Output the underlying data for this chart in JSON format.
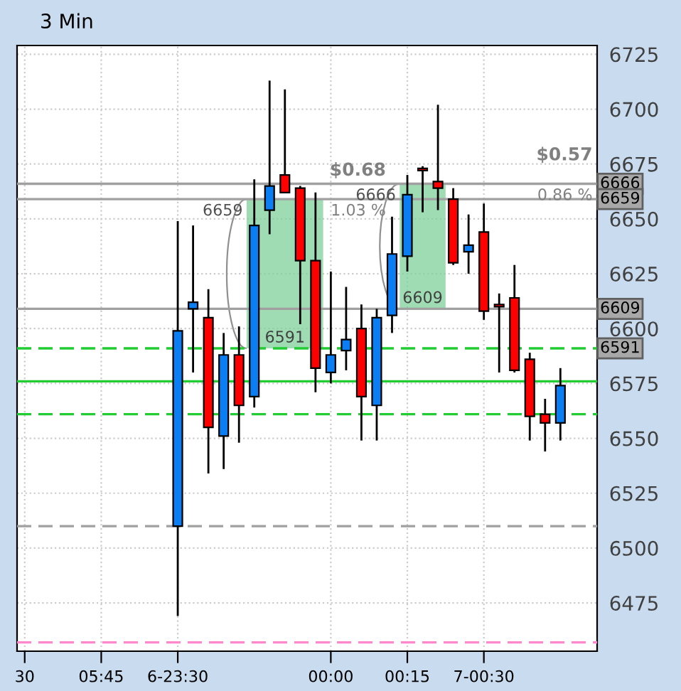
{
  "chart_data": {
    "type": "candlestick",
    "title": "3 Min",
    "categories": [
      "30",
      null,
      null,
      null,
      null,
      "05:45",
      null,
      null,
      null,
      null,
      "6-23:30",
      null,
      null,
      null,
      null,
      null,
      null,
      null,
      null,
      null,
      "00:00",
      null,
      null,
      null,
      null,
      "00:15",
      null,
      null,
      null,
      null,
      "7-00:30",
      null,
      null,
      null,
      null,
      null
    ],
    "ohlc": [
      null,
      null,
      null,
      null,
      null,
      null,
      null,
      null,
      null,
      null,
      [
        6510,
        6649,
        6469,
        6599
      ],
      [
        6609,
        6647,
        6580,
        6612
      ],
      [
        6605,
        6618,
        6534,
        6555
      ],
      [
        6551,
        6598,
        6536,
        6588
      ],
      [
        6588,
        6601,
        6548,
        6565
      ],
      [
        6569,
        6668,
        6564,
        6647
      ],
      [
        6654,
        6713,
        6643,
        6665
      ],
      [
        6670,
        6709,
        6662,
        6662
      ],
      [
        6664,
        6665,
        6602,
        6631
      ],
      [
        6631,
        6662,
        6571,
        6582
      ],
      [
        6580,
        6626,
        6575,
        6588
      ],
      [
        6590,
        6619,
        6581,
        6595
      ],
      [
        6600,
        6611,
        6549,
        6569
      ],
      [
        6565,
        6609,
        6549,
        6605
      ],
      [
        6606,
        6651,
        6598,
        6634
      ],
      [
        6633,
        6670,
        6626,
        6661
      ],
      [
        6673,
        6674,
        6653,
        6672
      ],
      [
        6667,
        6702,
        6654,
        6664
      ],
      [
        6659,
        6664,
        6629,
        6630
      ],
      [
        6635,
        6652,
        6625,
        6638
      ],
      [
        6644,
        6657,
        6604,
        6608
      ],
      [
        6611,
        6616,
        6580,
        6610
      ],
      [
        6614,
        6629,
        6580,
        6581
      ],
      [
        6586,
        6589,
        6549,
        6560
      ],
      [
        6561,
        6568,
        6544,
        6557
      ],
      [
        6557,
        6582,
        6549,
        6574
      ]
    ],
    "colors": [
      null,
      null,
      null,
      null,
      null,
      null,
      null,
      null,
      null,
      null,
      "#0a7ef2",
      "#0a7ef2",
      "#ff0000",
      "#0a7ef2",
      "#ff0000",
      "#0a7ef2",
      "#0a7ef2",
      "#ff0000",
      "#ff0000",
      "#ff0000",
      "#0a7ef2",
      "#0a7ef2",
      "#ff0000",
      "#0a7ef2",
      "#0a7ef2",
      "#0a7ef2",
      "#ff0000",
      "#ff0000",
      "#ff0000",
      "#0a7ef2",
      "#ff0000",
      "#ff0000",
      "#ff0000",
      "#ff0000",
      "#ff0000",
      "#0a7ef2"
    ],
    "ylim": [
      6453,
      6729
    ],
    "yticks": [
      6475,
      6500,
      6525,
      6550,
      6575,
      6600,
      6625,
      6650,
      6675,
      6700,
      6725
    ],
    "grid": true,
    "ref_lines": [
      {
        "axis": "y",
        "value": 6666,
        "label": "6666",
        "color": "#a0a0a0",
        "line_style": "solid"
      },
      {
        "axis": "y",
        "value": 6659,
        "label": "6659",
        "color": "#a0a0a0",
        "line_style": "solid"
      },
      {
        "axis": "y",
        "value": 6609,
        "label": "6609",
        "color": "#a0a0a0",
        "line_style": "solid"
      },
      {
        "axis": "y",
        "value": 6591,
        "label": "6591",
        "color": "#22cc33",
        "line_style": "dashed"
      },
      {
        "axis": "y",
        "value": 6576,
        "color": "#22cc33",
        "line_style": "solid"
      },
      {
        "axis": "y",
        "value": 6561,
        "color": "#22cc33",
        "line_style": "dashed"
      },
      {
        "axis": "y",
        "value": 6510,
        "color": "#a0a0a0",
        "line_style": "dashed"
      },
      {
        "axis": "y",
        "value": 6457,
        "color": "#ff88cc",
        "line_style": "dashed"
      }
    ],
    "annotations": [
      {
        "text": "$0.68",
        "y": 6659
      },
      "1.03 %",
      {
        "text": "6659",
        "y": 6659
      },
      {
        "text": "6591",
        "y": 6591
      },
      {
        "text": "$0.57",
        "y": 6666
      },
      "0.86 %",
      {
        "text": "6666",
        "y": 6666
      },
      {
        "text": "6609",
        "y": 6609
      }
    ]
  }
}
